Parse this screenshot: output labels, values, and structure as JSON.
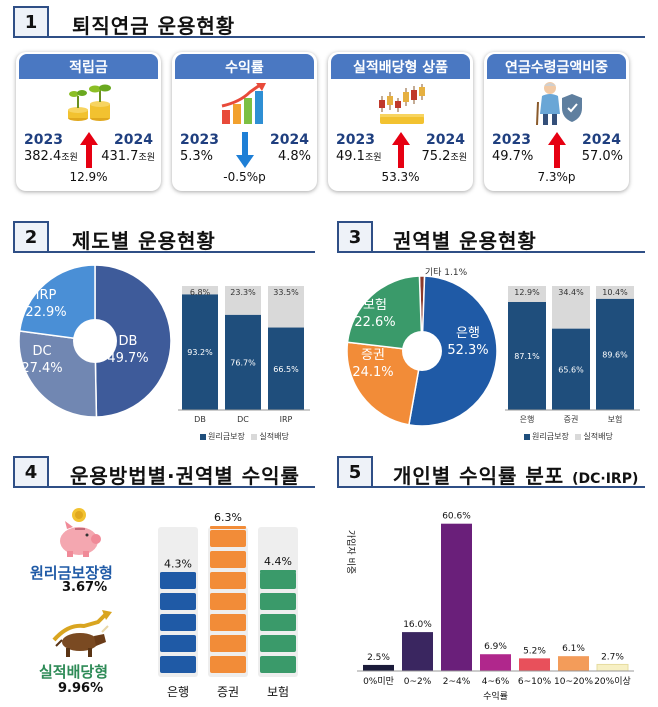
{
  "sections": [
    {
      "num": "1",
      "title": "퇴직연금 운용현황"
    },
    {
      "num": "2",
      "title": "제도별 운용현황"
    },
    {
      "num": "3",
      "title": "권역별 운용현황"
    },
    {
      "num": "4",
      "title": "운용방법별·권역별 수익률"
    },
    {
      "num": "5",
      "title": "개인별 수익률 분포",
      "title_suffix": "(DC·IRP)"
    }
  ],
  "cards": [
    {
      "title": "적립금",
      "year1": "2023",
      "year2": "2024",
      "value1": "382.4",
      "unit1": "조원",
      "value2": "431.7",
      "unit2": "조원",
      "change": "12.9%",
      "direction": "up"
    },
    {
      "title": "수익률",
      "year1": "2023",
      "year2": "2024",
      "value1": "5.3%",
      "unit1": "",
      "value2": "4.8%",
      "unit2": "",
      "change": "-0.5%p",
      "direction": "down"
    },
    {
      "title": "실적배당형 상품",
      "year1": "2023",
      "year2": "2024",
      "value1": "49.1",
      "unit1": "조원",
      "value2": "75.2",
      "unit2": "조원",
      "change": "53.3%",
      "direction": "up"
    },
    {
      "title": "연금수령금액비중",
      "year1": "2023",
      "year2": "2024",
      "value1": "49.7%",
      "unit1": "",
      "value2": "57.0%",
      "unit2": "",
      "change": "7.3%p",
      "direction": "up"
    }
  ],
  "colors": {
    "navy": "#1f4e8c",
    "blue": "#3a66b3",
    "header": "#4a78c2",
    "up_arrow": "#e60012",
    "down_arrow": "#1e7fd6",
    "gray": "#d9d9d9"
  },
  "chart_data": [
    {
      "id": "system_donut",
      "type": "pie",
      "labels": [
        "DB",
        "DC",
        "IRP"
      ],
      "values": [
        49.7,
        27.4,
        22.9
      ],
      "value_labels": [
        "49.7%",
        "27.4%",
        "22.9%"
      ],
      "colors": [
        "#3e5b9a",
        "#7187b2",
        "#4a8fd6"
      ]
    },
    {
      "id": "system_bar",
      "type": "bar",
      "categories": [
        "DB",
        "DC",
        "IRP"
      ],
      "series": [
        {
          "name": "원리금보장",
          "values": [
            93.2,
            76.7,
            66.5
          ],
          "labels": [
            "93.2%",
            "76.7%",
            "66.5%"
          ],
          "color": "#1f4e7c"
        },
        {
          "name": "실적배당",
          "values": [
            6.8,
            23.3,
            33.5
          ],
          "labels": [
            "6.8%",
            "23.3%",
            "33.5%"
          ],
          "color": "#d9d9d9"
        }
      ],
      "ylim": [
        0,
        100
      ]
    },
    {
      "id": "sector_donut",
      "type": "pie",
      "labels": [
        "은행",
        "증권",
        "보험",
        "기타"
      ],
      "values": [
        52.3,
        24.1,
        22.6,
        1.1
      ],
      "value_labels": [
        "52.3%",
        "24.1%",
        "22.6%",
        "1.1%"
      ],
      "colors": [
        "#1f5aa6",
        "#f28c38",
        "#3a9a6a",
        "#8b3a2b"
      ]
    },
    {
      "id": "sector_bar",
      "type": "bar",
      "categories": [
        "은행",
        "증권",
        "보험"
      ],
      "series": [
        {
          "name": "원리금보장",
          "values": [
            87.1,
            65.6,
            89.6
          ],
          "labels": [
            "87.1%",
            "65.6%",
            "89.6%"
          ],
          "color": "#1f4e7c"
        },
        {
          "name": "실적배당",
          "values": [
            12.9,
            34.4,
            10.4
          ],
          "labels": [
            "12.9%",
            "34.4%",
            "10.4%"
          ],
          "color": "#d9d9d9"
        }
      ],
      "ylim": [
        0,
        100
      ]
    },
    {
      "id": "returns_by_sector",
      "type": "bar",
      "categories": [
        "은행",
        "증권",
        "보험"
      ],
      "values": [
        4.3,
        6.3,
        4.4
      ],
      "value_labels": [
        "4.3%",
        "6.3%",
        "4.4%"
      ],
      "colors": [
        "#1f5aa6",
        "#f28c38",
        "#3a9a6a"
      ],
      "methods": [
        {
          "label": "원리금보장형",
          "value": "3.67%",
          "color": "#1f5aa6"
        },
        {
          "label": "실적배당형",
          "value": "9.96%",
          "color": "#2e8b57"
        }
      ]
    },
    {
      "id": "individual_distribution",
      "type": "bar",
      "categories": [
        "0%미만",
        "0~2%",
        "2~4%",
        "4~6%",
        "6~10%",
        "10~20%",
        "20%이상"
      ],
      "values": [
        2.5,
        16.0,
        60.6,
        6.9,
        5.2,
        6.1,
        2.7
      ],
      "value_labels": [
        "2.5%",
        "16.0%",
        "60.6%",
        "6.9%",
        "5.2%",
        "6.1%",
        "2.7%"
      ],
      "colors": [
        "#1b1b3a",
        "#3a2660",
        "#6a1f7a",
        "#b0278c",
        "#e8505b",
        "#f39c5a",
        "#f7f0c4"
      ],
      "xlabel": "수익률",
      "ylabel": "가입자 비중",
      "ylim": [
        0,
        65
      ]
    }
  ]
}
